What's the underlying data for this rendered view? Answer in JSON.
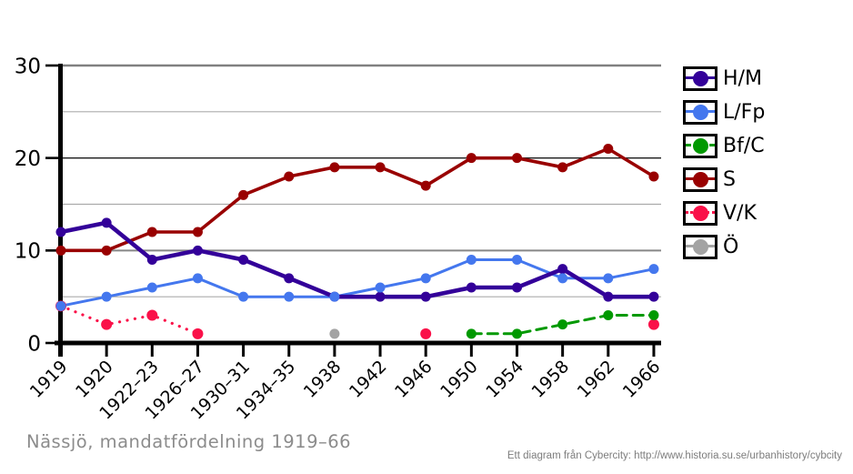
{
  "title": "Nässjö, mandatfördelning 1919–66",
  "credit": "Ett diagram från Cybercity: http://www.historia.su.se/urbanhistory/cybcity",
  "chart_data": {
    "type": "line",
    "title": "Nässjö, mandatfördelning 1919–66",
    "xlabel": "",
    "ylabel": "",
    "categories": [
      "1919",
      "1920",
      "1922–23",
      "1926–27",
      "1930–31",
      "1934–35",
      "1938",
      "1942",
      "1946",
      "1950",
      "1954",
      "1958",
      "1962",
      "1966"
    ],
    "series": [
      {
        "name": "H/M",
        "color": "#330099",
        "line_style": "solid",
        "stroke_width": 4.6,
        "values": [
          12,
          13,
          9,
          10,
          9,
          7,
          5,
          5,
          5,
          6,
          6,
          8,
          5,
          5
        ]
      },
      {
        "name": "L/Fp",
        "color": "#4477ee",
        "line_style": "solid",
        "stroke_width": 3,
        "values": [
          4,
          5,
          6,
          7,
          5,
          5,
          5,
          6,
          7,
          9,
          9,
          7,
          7,
          8
        ]
      },
      {
        "name": "Bf/C",
        "color": "#009900",
        "line_style": "dashed",
        "stroke_width": 3,
        "values": [
          null,
          null,
          null,
          null,
          null,
          null,
          null,
          null,
          null,
          1,
          1,
          2,
          3,
          3
        ]
      },
      {
        "name": "S",
        "color": "#990000",
        "line_style": "solid",
        "stroke_width": 3.6,
        "values": [
          10,
          10,
          12,
          12,
          16,
          18,
          19,
          19,
          17,
          20,
          20,
          19,
          21,
          18
        ]
      },
      {
        "name": "V/K",
        "color": "#fa1149",
        "line_style": "dotted",
        "stroke_width": 3.2,
        "values": [
          4,
          2,
          3,
          1,
          null,
          null,
          null,
          null,
          1,
          null,
          null,
          null,
          null,
          2
        ]
      },
      {
        "name": "Ö",
        "color": "#a3a3a3",
        "line_style": "solid",
        "stroke_width": 3,
        "values": [
          null,
          null,
          null,
          null,
          null,
          null,
          1,
          null,
          null,
          null,
          null,
          null,
          null,
          null
        ]
      }
    ],
    "ylim": [
      0,
      30
    ],
    "yticks": [
      0,
      10,
      20,
      30
    ],
    "minor_gridlines": [
      5,
      15,
      25
    ],
    "grid": true,
    "legend_position": "right"
  }
}
